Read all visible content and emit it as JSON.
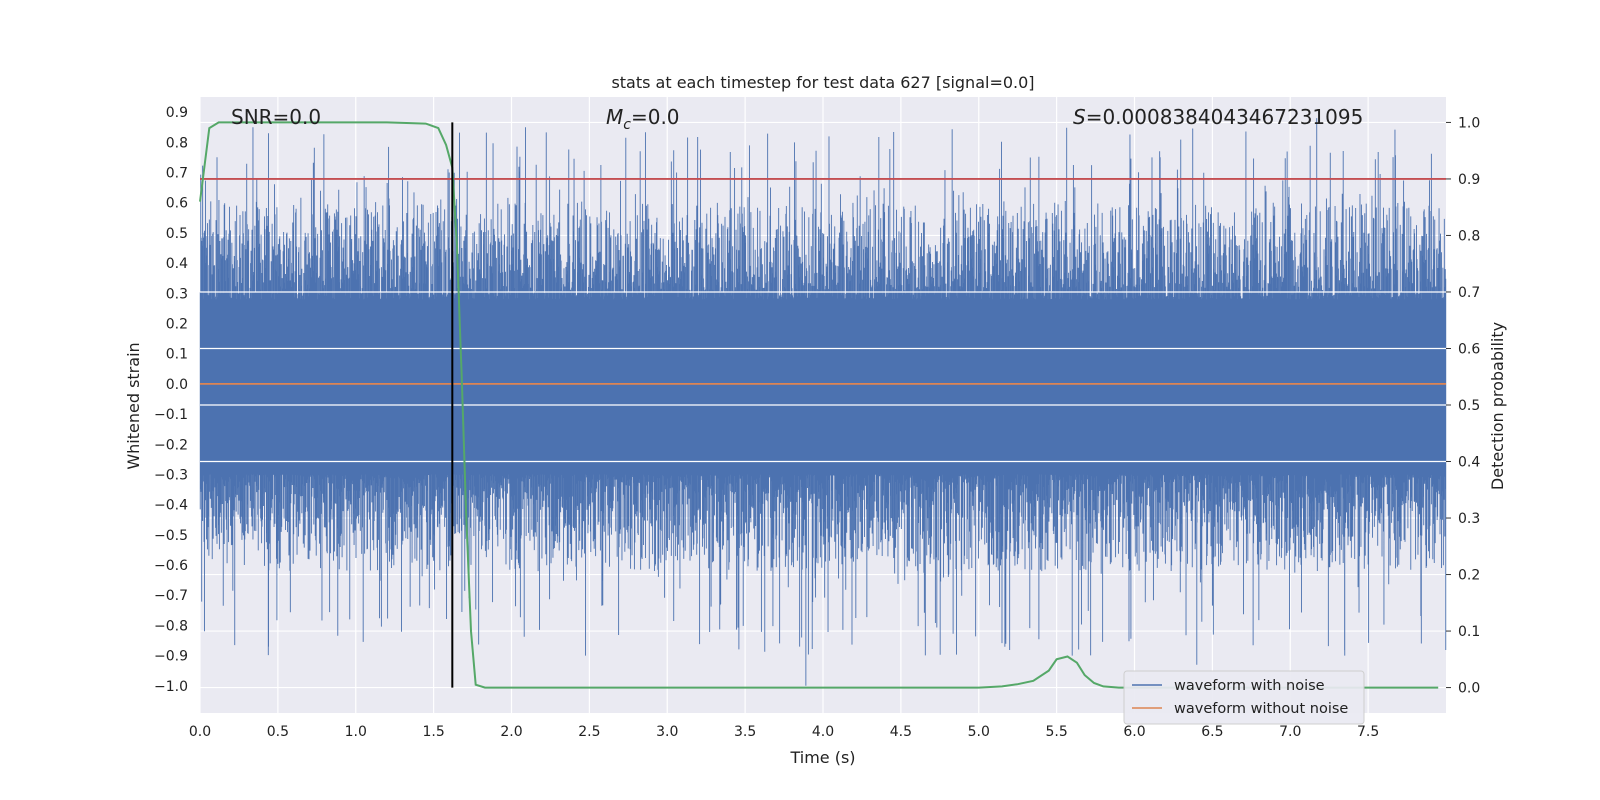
{
  "chart_data": {
    "type": "line",
    "title": "stats at each timestep for test data 627 [signal=0.0]",
    "xlabel": "Time (s)",
    "ylabel": "Whitened strain",
    "y2label": "Detection probability",
    "xlim": [
      0.0,
      8.0
    ],
    "ylim": [
      -1.09,
      0.95
    ],
    "y2lim": [
      -0.045,
      1.045
    ],
    "x_ticks": [
      "0.0",
      "0.5",
      "1.0",
      "1.5",
      "2.0",
      "2.5",
      "3.0",
      "3.5",
      "4.0",
      "4.5",
      "5.0",
      "5.5",
      "6.0",
      "6.5",
      "7.0",
      "7.5"
    ],
    "y_ticks": [
      "0.9",
      "0.8",
      "0.7",
      "0.6",
      "0.5",
      "0.4",
      "0.3",
      "0.2",
      "0.1",
      "0.0",
      "-0.1",
      "-0.2",
      "-0.3",
      "-0.4",
      "-0.5",
      "-0.6",
      "-0.7",
      "-0.8",
      "-0.9",
      "-1.0"
    ],
    "y2_ticks": [
      "1.0",
      "0.9",
      "0.8",
      "0.7",
      "0.6",
      "0.5",
      "0.4",
      "0.3",
      "0.2",
      "0.1",
      "0.0"
    ],
    "annotations": {
      "snr": "SNR=0.0",
      "mc_symbol": "M",
      "mc_sub": "c",
      "mc_value": "=0.0",
      "s_symbol": "S",
      "s_value": "=0.0008384043467231095"
    },
    "threshold_probability": 0.9,
    "vertical_marker_time": 1.62,
    "series": [
      {
        "name": "waveform with noise",
        "color": "#4c72b0",
        "axis": "left",
        "amplitude_range": [
          -1.0,
          0.88
        ]
      },
      {
        "name": "waveform without noise",
        "color": "#dd8452",
        "axis": "left",
        "value": 0.0
      },
      {
        "name": "Detection probability",
        "color": "#55a868",
        "axis": "right",
        "x": [
          0.0,
          0.06,
          0.12,
          0.2,
          0.4,
          0.8,
          1.2,
          1.45,
          1.53,
          1.58,
          1.62,
          1.65,
          1.68,
          1.71,
          1.74,
          1.77,
          1.83,
          1.88,
          2.0,
          3.0,
          4.0,
          5.0,
          5.15,
          5.25,
          5.35,
          5.45,
          5.5,
          5.57,
          5.63,
          5.68,
          5.74,
          5.8,
          5.9,
          6.0,
          7.0,
          7.95
        ],
        "y": [
          0.86,
          0.99,
          1.0,
          1.0,
          1.0,
          1.0,
          1.0,
          0.998,
          0.99,
          0.96,
          0.92,
          0.78,
          0.55,
          0.3,
          0.1,
          0.005,
          0.0,
          0.0,
          0.0,
          0.0,
          0.0,
          0.0,
          0.002,
          0.006,
          0.012,
          0.03,
          0.05,
          0.055,
          0.044,
          0.022,
          0.008,
          0.002,
          0.0,
          0.0,
          0.0,
          0.0
        ]
      },
      {
        "name": "threshold",
        "color": "#c44e52",
        "axis": "right",
        "value": 0.9
      }
    ],
    "legend": {
      "location": "lower-right",
      "entries": [
        {
          "label": "waveform with noise",
          "color": "#4c72b0"
        },
        {
          "label": "waveform without noise",
          "color": "#dd8452"
        }
      ]
    },
    "colors": {
      "background": "#eaeaf2",
      "grid": "#ffffff",
      "marker": "#000000"
    }
  }
}
